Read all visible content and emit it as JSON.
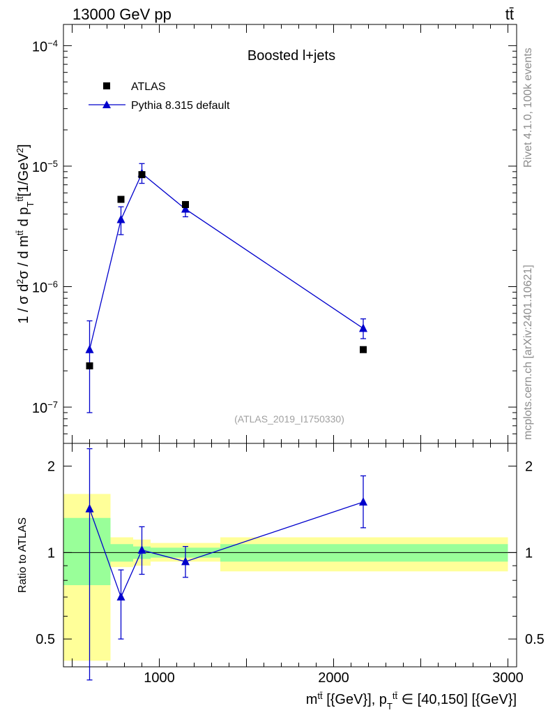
{
  "header": {
    "left": "13000 GeV pp",
    "right": "tt̄"
  },
  "side_labels": {
    "rivet": "Rivet 4.1.0,  100k events",
    "mcplots": "mcplots.cern.ch [arXiv:2401.10621]"
  },
  "colors": {
    "mc": "#0000cc",
    "data": "#000000",
    "band_inner": "#99ff99",
    "band_outer": "#ffff99"
  },
  "chart_data": [
    {
      "type": "scatter",
      "panel": "main",
      "title": "Boosted l+jets",
      "watermark": "(ATLAS_2019_I1750330)",
      "ylabel": "1 / σ d²σ / d  m^tt̄ d p_T^tt̄ [1/GeV²]",
      "yscale": "log",
      "ylim": [
        5e-08,
        0.00015
      ],
      "xlim": [
        450,
        3050
      ],
      "y_ticks": [
        {
          "value": 1e-07,
          "base": "10",
          "exp": "−7"
        },
        {
          "value": 1e-06,
          "base": "10",
          "exp": "−6"
        },
        {
          "value": 1e-05,
          "base": "10",
          "exp": "−5"
        },
        {
          "value": 0.0001,
          "base": "10",
          "exp": "−4"
        }
      ],
      "legend": [
        {
          "name": "ATLAS",
          "marker": "square"
        },
        {
          "name": "Pythia 8.315 default",
          "marker": "triangle"
        }
      ],
      "series": [
        {
          "name": "ATLAS",
          "marker": "square",
          "x": [
            600,
            780,
            900,
            1150,
            2170
          ],
          "y": [
            2.2e-07,
            5.3e-06,
            8.5e-06,
            4.8e-06,
            3e-07
          ]
        },
        {
          "name": "Pythia 8.315 default",
          "marker": "triangle",
          "x": [
            600,
            780,
            900,
            1150,
            2170
          ],
          "y": [
            3e-07,
            3.6e-06,
            8.7e-06,
            4.4e-06,
            4.5e-07
          ],
          "y_low": [
            9e-08,
            2.7e-06,
            7.2e-06,
            3.8e-06,
            3.7e-07
          ],
          "y_high": [
            5.2e-07,
            4.6e-06,
            1.05e-05,
            5e-06,
            5.4e-07
          ]
        }
      ]
    },
    {
      "type": "line",
      "panel": "ratio",
      "ylabel": "Ratio to ATLAS",
      "xlabel": "m^tt̄ [{GeV}], p_T^tt̄ ∈ [40,150] [{GeV}]",
      "yscale": "log",
      "ylim": [
        0.4,
        2.4
      ],
      "xlim": [
        450,
        3050
      ],
      "y_ticks": [
        0.5,
        1,
        2
      ],
      "x_ticks": [
        1000,
        2000,
        3000
      ],
      "bands": [
        {
          "x0": 450,
          "x1": 720,
          "inner": [
            0.77,
            1.32
          ],
          "outer": [
            0.42,
            1.6
          ]
        },
        {
          "x0": 720,
          "x1": 850,
          "inner": [
            0.93,
            1.07
          ],
          "outer": [
            0.89,
            1.13
          ]
        },
        {
          "x0": 850,
          "x1": 950,
          "inner": [
            0.95,
            1.05
          ],
          "outer": [
            0.9,
            1.11
          ]
        },
        {
          "x0": 950,
          "x1": 1350,
          "inner": [
            0.96,
            1.04
          ],
          "outer": [
            0.93,
            1.08
          ]
        },
        {
          "x0": 1350,
          "x1": 3000,
          "inner": [
            0.93,
            1.07
          ],
          "outer": [
            0.86,
            1.13
          ]
        }
      ],
      "series": [
        {
          "name": "Pythia 8.315 default / ATLAS",
          "marker": "triangle",
          "x": [
            600,
            780,
            900,
            1150,
            2170
          ],
          "y": [
            1.42,
            0.7,
            1.02,
            0.93,
            1.5
          ],
          "y_low": [
            0.36,
            0.5,
            0.84,
            0.82,
            1.22
          ],
          "y_high": [
            2.3,
            0.87,
            1.23,
            1.05,
            1.85
          ]
        }
      ]
    }
  ]
}
